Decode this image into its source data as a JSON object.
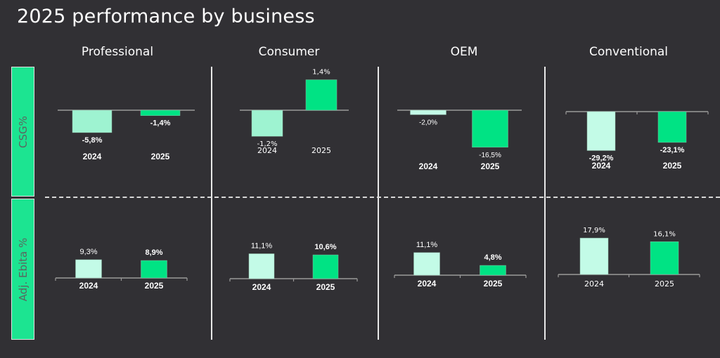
{
  "page": {
    "title": "2025 performance by business",
    "row_labels": [
      "CSG%",
      "Adj. Ebita %"
    ]
  },
  "colors": {
    "background": "#313034",
    "bar_2024": "#c3fbe7",
    "bar_2024_alt": "#9ef3d1",
    "bar_2025": "#00e384",
    "row_label_bg": "#1ce491",
    "axis": "#9a9a9a"
  },
  "chart_data": [
    {
      "type": "bar",
      "title": "Professional",
      "metric": "CSG%",
      "categories": [
        "2024",
        "2025"
      ],
      "values": [
        -5.8,
        -1.4
      ],
      "labels": [
        "-5,8%",
        "-1,4%"
      ]
    },
    {
      "type": "bar",
      "title": "Consumer",
      "metric": "CSG%",
      "categories": [
        "2024",
        "2025"
      ],
      "values": [
        -1.2,
        1.4
      ],
      "labels": [
        "-1,2%",
        "1,4%"
      ]
    },
    {
      "type": "bar",
      "title": "OEM",
      "metric": "CSG%",
      "categories": [
        "2024",
        "2025"
      ],
      "values": [
        -2.0,
        -16.5
      ],
      "labels": [
        "-2,0%",
        "-16,5%"
      ]
    },
    {
      "type": "bar",
      "title": "Conventional",
      "metric": "CSG%",
      "categories": [
        "2024",
        "2025"
      ],
      "values": [
        -29.2,
        -23.1
      ],
      "labels": [
        "-29,2%",
        "-23,1%"
      ]
    },
    {
      "type": "bar",
      "title": "Professional",
      "metric": "Adj. Ebita %",
      "categories": [
        "2024",
        "2025"
      ],
      "values": [
        9.3,
        8.9
      ],
      "labels": [
        "9,3%",
        "8,9%"
      ]
    },
    {
      "type": "bar",
      "title": "Consumer",
      "metric": "Adj. Ebita %",
      "categories": [
        "2024",
        "2025"
      ],
      "values": [
        11.1,
        10.6
      ],
      "labels": [
        "11,1%",
        "10,6%"
      ]
    },
    {
      "type": "bar",
      "title": "OEM",
      "metric": "Adj. Ebita %",
      "categories": [
        "2024",
        "2025"
      ],
      "values": [
        11.1,
        4.8
      ],
      "labels": [
        "11,1%",
        "4,8%"
      ]
    },
    {
      "type": "bar",
      "title": "Conventional",
      "metric": "Adj. Ebita %",
      "categories": [
        "2024",
        "2025"
      ],
      "values": [
        17.9,
        16.1
      ],
      "labels": [
        "17,9%",
        "16,1%"
      ]
    }
  ]
}
